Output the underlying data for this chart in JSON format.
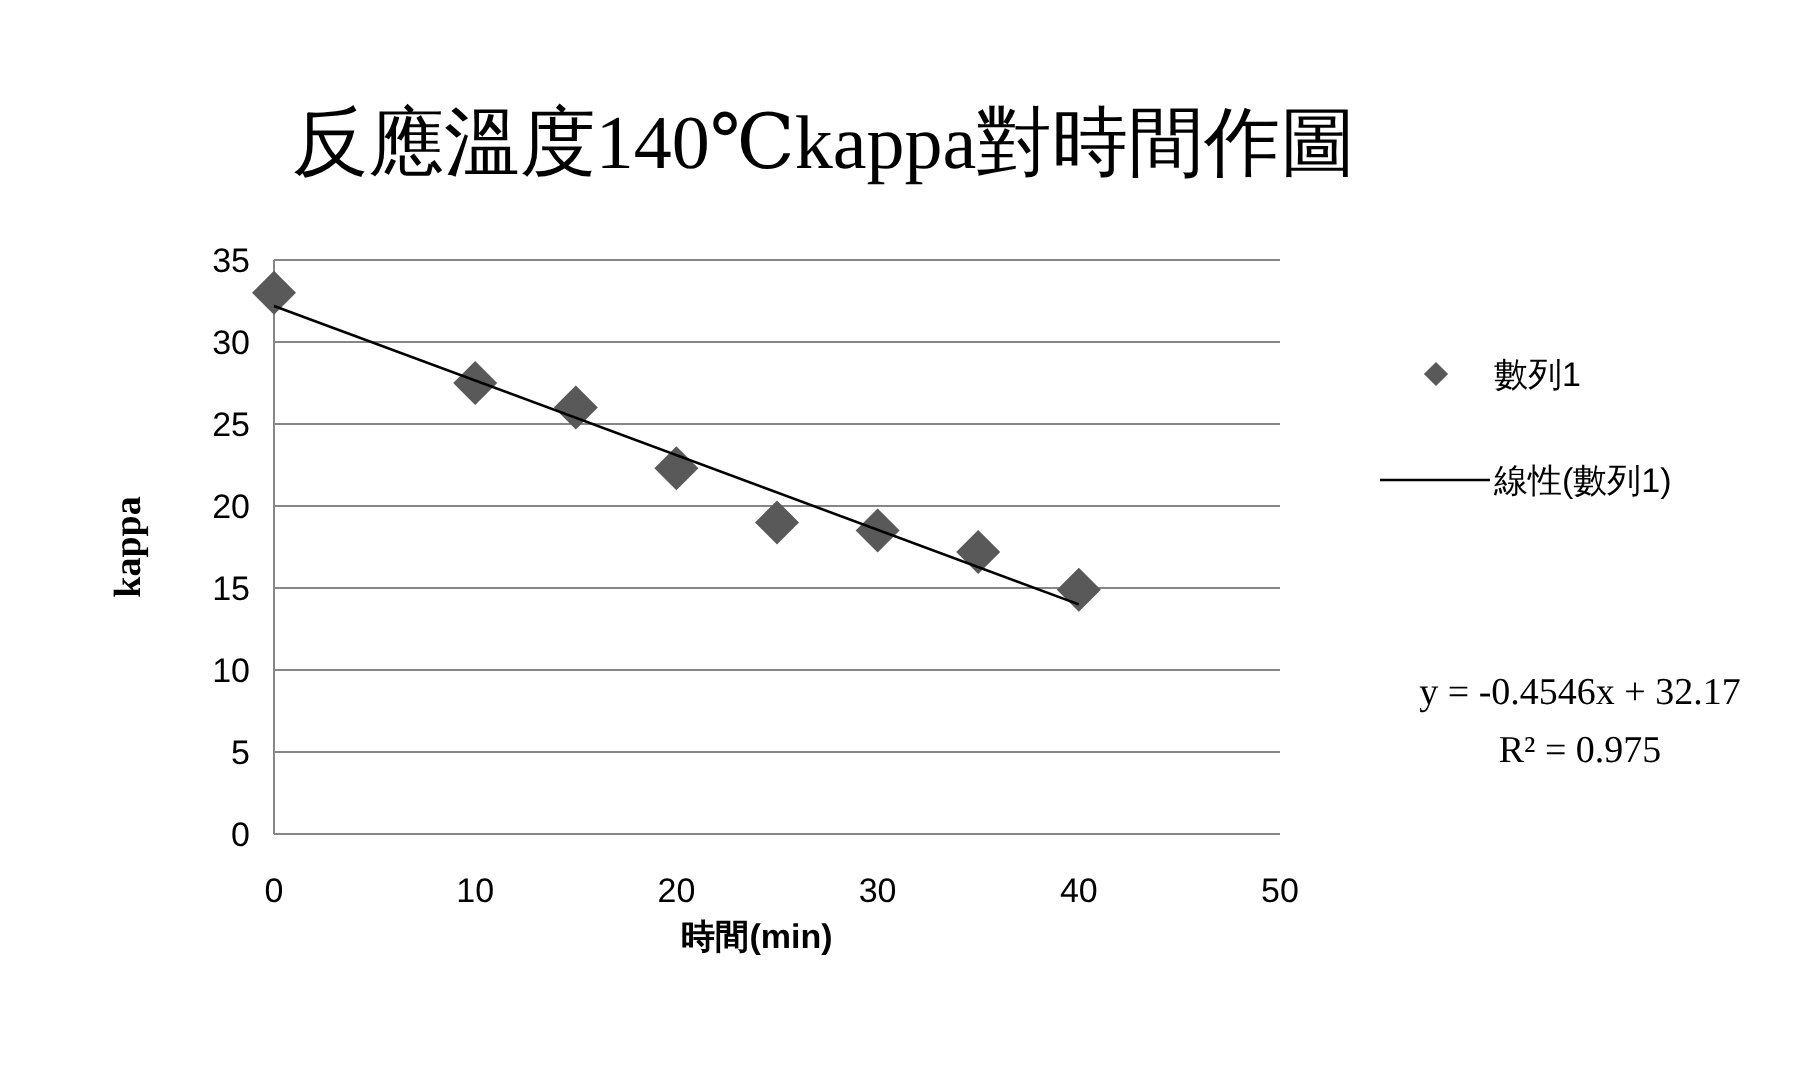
{
  "chart_data": {
    "type": "scatter",
    "title": "反應溫度140℃kappa對時間作圖",
    "xlabel": "時間(min)",
    "ylabel": "kappa",
    "xlim": [
      0,
      50
    ],
    "ylim": [
      0,
      35
    ],
    "xticks": [
      0,
      10,
      20,
      30,
      40,
      50
    ],
    "yticks": [
      0,
      5,
      10,
      15,
      20,
      25,
      30,
      35
    ],
    "grid": "y",
    "legend": "right",
    "series": [
      {
        "name": "數列1",
        "marker": "diamond",
        "color": "#595959",
        "x": [
          0,
          10,
          15,
          20,
          25,
          30,
          35,
          40
        ],
        "values": [
          33.0,
          27.5,
          26.0,
          22.3,
          19.0,
          18.5,
          17.2,
          14.9
        ]
      },
      {
        "name": "線性(數列1)",
        "type": "line",
        "marker": "none",
        "color": "#000000",
        "x": [
          0,
          40
        ],
        "values": [
          32.2,
          14.0
        ]
      }
    ],
    "annotations": [
      "y = -0.4546x + 32.17",
      "R² = 0.975"
    ]
  }
}
